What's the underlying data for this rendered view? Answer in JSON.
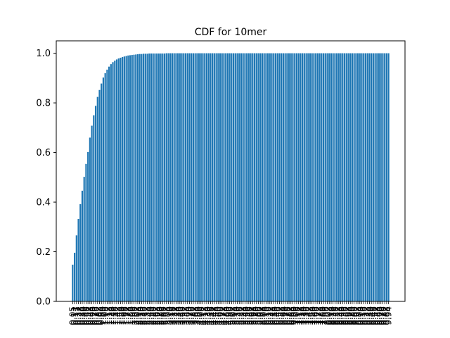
{
  "chart_data": {
    "type": "bar",
    "title": "CDF for 10mer",
    "xlabel": "",
    "ylabel": "",
    "ylim": [
      0,
      1.05
    ],
    "yticks": [
      0.0,
      0.2,
      0.4,
      0.6,
      0.8,
      1.0
    ],
    "ytick_labels": [
      "0.0",
      "0.2",
      "0.4",
      "0.6",
      "0.8",
      "1.0"
    ],
    "bar_color": "#1f77b4",
    "grid": false,
    "legend": "none",
    "categories": [
      "0.05",
      "0.11",
      "0.17",
      "0.22",
      "0.28",
      "0.34",
      "0.40",
      "0.46",
      "0.52",
      "0.58",
      "0.64",
      "0.70",
      "0.76",
      "0.82",
      "0.88",
      "0.94",
      "1.00",
      "1.06",
      "1.12",
      "1.18",
      "1.24",
      "1.30",
      "1.36",
      "1.42",
      "1.48",
      "1.54",
      "1.60",
      "1.66",
      "1.72",
      "1.78",
      "1.84",
      "1.90",
      "1.96",
      "2.02",
      "2.08",
      "2.14",
      "2.20",
      "2.26",
      "2.32",
      "2.38",
      "2.44",
      "2.50",
      "2.56",
      "2.62",
      "2.68",
      "2.74",
      "2.80",
      "2.86",
      "2.92",
      "2.98",
      "3.04",
      "3.10",
      "3.16",
      "3.22",
      "3.28",
      "3.34",
      "3.40",
      "3.46",
      "3.52",
      "3.58",
      "3.64",
      "3.70",
      "3.76",
      "3.82",
      "3.88",
      "3.94",
      "4.00",
      "4.06",
      "4.12",
      "4.18",
      "4.24",
      "4.30",
      "4.36",
      "4.42",
      "4.48",
      "4.54",
      "4.60",
      "4.66",
      "4.72",
      "4.78",
      "4.84",
      "4.90",
      "4.96",
      "5.02",
      "5.08",
      "5.14",
      "5.20",
      "5.26",
      "5.32",
      "5.38",
      "5.44",
      "5.50",
      "5.56",
      "5.62",
      "5.68",
      "5.74",
      "5.80",
      "5.86",
      "5.92",
      "5.98",
      "6.04",
      "6.10",
      "6.16",
      "6.22",
      "6.28",
      "6.34",
      "6.40",
      "6.46",
      "6.52",
      "6.58",
      "6.64",
      "6.70",
      "6.76",
      "6.82",
      "6.88",
      "6.94",
      "7.00",
      "7.06",
      "7.12",
      "7.18",
      "7.24",
      "7.30",
      "7.36",
      "7.42",
      "7.48",
      "7.54",
      "7.60",
      "7.66",
      "7.72",
      "7.78",
      "7.84",
      "7.90",
      "7.96",
      "8.02",
      "8.08",
      "8.14",
      "8.20",
      "8.26",
      "8.32",
      "8.38",
      "8.44",
      "8.50",
      "8.56",
      "8.62",
      "8.68",
      "8.74",
      "8.80",
      "8.86",
      "8.92",
      "8.98",
      "9.04",
      "9.10",
      "9.16",
      "9.22",
      "9.28",
      "9.34",
      "9.40",
      "9.46",
      "9.52",
      "9.58",
      "9.64",
      "9.70",
      "9.76",
      "9.82",
      "9.88",
      "9.94"
    ],
    "values": [
      0.148,
      0.196,
      0.266,
      0.332,
      0.392,
      0.446,
      0.502,
      0.554,
      0.602,
      0.66,
      0.708,
      0.75,
      0.788,
      0.824,
      0.852,
      0.878,
      0.902,
      0.92,
      0.934,
      0.946,
      0.956,
      0.964,
      0.97,
      0.975,
      0.979,
      0.982,
      0.985,
      0.987,
      0.989,
      0.991,
      0.992,
      0.993,
      0.994,
      0.995,
      0.996,
      0.997,
      0.997,
      0.998,
      0.998,
      0.998,
      0.999,
      0.999,
      0.999,
      0.999,
      0.999,
      0.999,
      0.999,
      0.999,
      0.999,
      1.0,
      1.0,
      1.0,
      1.0,
      1.0,
      1.0,
      1.0,
      1.0,
      1.0,
      1.0,
      1.0,
      1.0,
      1.0,
      1.0,
      1.0,
      1.0,
      1.0,
      1.0,
      1.0,
      1.0,
      1.0,
      1.0,
      1.0,
      1.0,
      1.0,
      1.0,
      1.0,
      1.0,
      1.0,
      1.0,
      1.0,
      1.0,
      1.0,
      1.0,
      1.0,
      1.0,
      1.0,
      1.0,
      1.0,
      1.0,
      1.0,
      1.0,
      1.0,
      1.0,
      1.0,
      1.0,
      1.0,
      1.0,
      1.0,
      1.0,
      1.0,
      1.0,
      1.0,
      1.0,
      1.0,
      1.0,
      1.0,
      1.0,
      1.0,
      1.0,
      1.0,
      1.0,
      1.0,
      1.0,
      1.0,
      1.0,
      1.0,
      1.0,
      1.0,
      1.0,
      1.0,
      1.0,
      1.0,
      1.0,
      1.0,
      1.0,
      1.0,
      1.0,
      1.0,
      1.0,
      1.0,
      1.0,
      1.0,
      1.0,
      1.0,
      1.0,
      1.0,
      1.0,
      1.0,
      1.0,
      1.0,
      1.0,
      1.0,
      1.0,
      1.0,
      1.0,
      1.0,
      1.0,
      1.0,
      1.0,
      1.0,
      1.0,
      1.0,
      1.0,
      1.0,
      1.0,
      1.0,
      1.0,
      1.0,
      1.0,
      1.0,
      1.0,
      1.0,
      1.0,
      1.0,
      1.0,
      1.0
    ]
  }
}
